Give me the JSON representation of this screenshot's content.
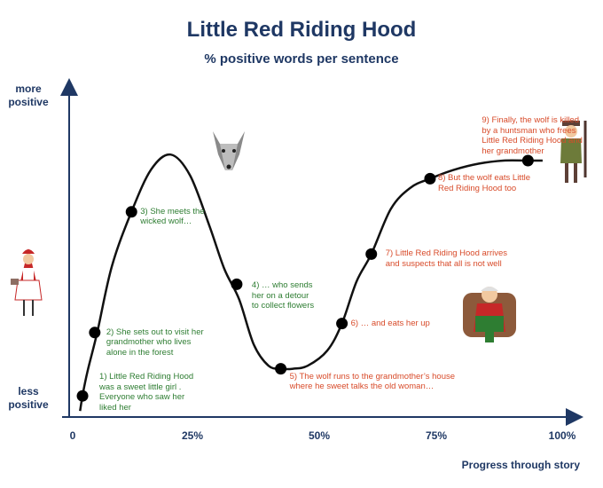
{
  "chart_data": {
    "type": "line",
    "title": "Little Red Riding Hood",
    "subtitle": "% positive words per sentence",
    "ylabel_top": "more\npositive",
    "ylabel_bottom": "less\npositive",
    "xlabel": "Progress through story",
    "xlim": [
      0,
      100
    ],
    "ylim": [
      0,
      100
    ],
    "x_ticks": [
      "0",
      "25%",
      "50%",
      "75%",
      "100%"
    ],
    "x_tick_values": [
      0,
      25,
      50,
      75,
      100
    ],
    "curve": {
      "x": [
        1.5,
        2,
        3,
        5,
        8,
        12,
        16,
        20,
        24,
        28,
        31,
        34,
        37,
        40,
        42.5,
        45,
        48,
        52,
        55,
        58,
        61,
        65,
        69,
        73,
        78,
        83,
        88,
        93,
        96
      ],
      "y": [
        2,
        7,
        15,
        28,
        50,
        68,
        82,
        87,
        80,
        63,
        49,
        39,
        24,
        17,
        16,
        16,
        17,
        22,
        31,
        45,
        54,
        69,
        76,
        79,
        82,
        84,
        85,
        85,
        85
      ]
    },
    "points": [
      {
        "x": 2,
        "y": 7,
        "label": "1) Little Red Riding Hood\nwas a sweet little girl .\nEveryone who saw her\nliked her",
        "color": "green"
      },
      {
        "x": 4.5,
        "y": 28,
        "label": "2) She sets out to visit her\ngrandmother who lives\nalone in the forest",
        "color": "green"
      },
      {
        "x": 12,
        "y": 68,
        "label": "3) She meets the\nwicked wolf…",
        "color": "green"
      },
      {
        "x": 33.5,
        "y": 44,
        "label": "4) … who sends\nher on a detour\nto collect flowers",
        "color": "green"
      },
      {
        "x": 42.5,
        "y": 16,
        "label": "5) The wolf runs to the grandmother’s house\nwhere he sweet talks the old woman…",
        "color": "red"
      },
      {
        "x": 55,
        "y": 31,
        "label": "6) … and eats her up",
        "color": "red"
      },
      {
        "x": 61,
        "y": 54,
        "label": "7) Little Red Riding Hood arrives\nand suspects that all is not well",
        "color": "red"
      },
      {
        "x": 73,
        "y": 79,
        "label": "8) But the wolf eats Little\nRed Riding Hood too",
        "color": "red"
      },
      {
        "x": 93,
        "y": 85,
        "label": "9) Finally, the wolf is killed\nby a huntsman who frees\nLittle Red Riding Hood and\nher grandmother",
        "color": "red"
      }
    ],
    "colors": {
      "axis": "#1f3864",
      "curve": "#111111",
      "positive_text": "#2e7d32",
      "negative_text": "#d84b2a"
    },
    "pictures": [
      "red-riding-hood-picture",
      "wolf-picture",
      "grandmother-picture",
      "huntsman-picture"
    ]
  }
}
